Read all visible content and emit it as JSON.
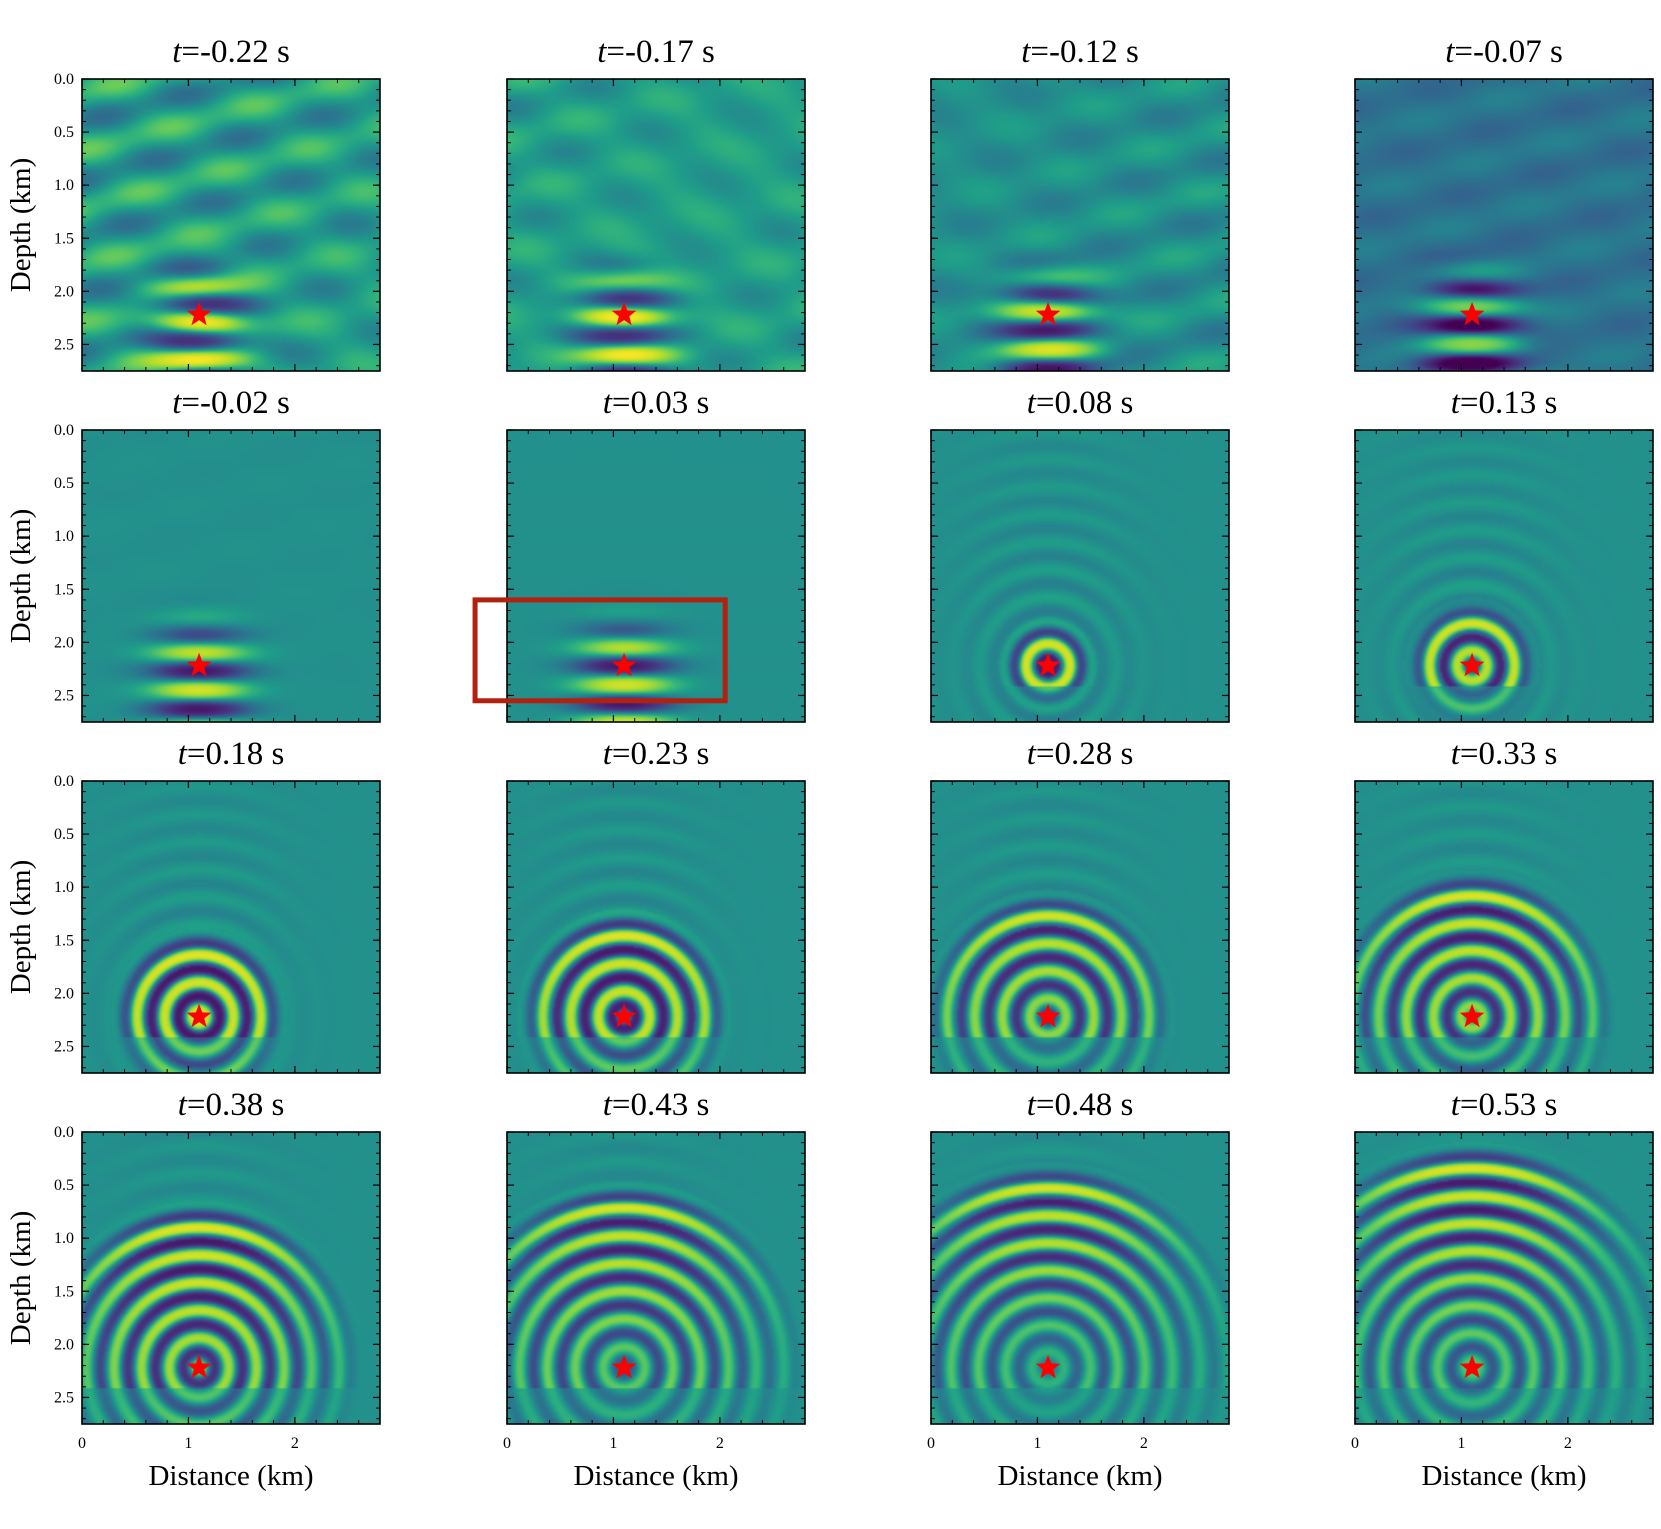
{
  "figure": {
    "colormap": [
      "#440154",
      "#482878",
      "#3e4a89",
      "#31688e",
      "#26828e",
      "#1f9e89",
      "#35b779",
      "#6ece58",
      "#b5de2b",
      "#fde725"
    ],
    "frame_color": "#000000",
    "source_marker": {
      "shape": "star",
      "color": "#ff0000",
      "x_km": 1.1,
      "depth_km": 2.22
    },
    "highlight_box": {
      "panel_index": 5,
      "color": "#b22010",
      "x_range_km": [
        -0.3,
        2.05
      ],
      "depth_range_km": [
        1.6,
        2.55
      ]
    }
  },
  "chart_data": {
    "type": "heatmap",
    "rows": 4,
    "columns": 4,
    "xlabel": "Distance (km)",
    "ylabel": "Depth (km)",
    "xlim": [
      0,
      2.8
    ],
    "ylim": [
      2.75,
      0.0
    ],
    "x_ticks": [
      0,
      1,
      2
    ],
    "y_ticks": [
      0.0,
      0.5,
      1.0,
      1.5,
      2.0,
      2.5
    ],
    "y_inverted": true,
    "title_prefix": "t",
    "title_unit": "s",
    "panels": [
      {
        "t": "-0.22",
        "title": "t=-0.22 s"
      },
      {
        "t": "-0.17",
        "title": "t=-0.17 s"
      },
      {
        "t": "-0.12",
        "title": "t=-0.12 s"
      },
      {
        "t": "-0.07",
        "title": "t=-0.07 s"
      },
      {
        "t": "-0.02",
        "title": "t=-0.02 s"
      },
      {
        "t": "0.03",
        "title": "t=0.03 s"
      },
      {
        "t": "0.08",
        "title": "t=0.08 s"
      },
      {
        "t": "0.13",
        "title": "t=0.13 s"
      },
      {
        "t": "0.18",
        "title": "t=0.18 s"
      },
      {
        "t": "0.23",
        "title": "t=0.23 s"
      },
      {
        "t": "0.28",
        "title": "t=0.28 s"
      },
      {
        "t": "0.33",
        "title": "t=0.33 s"
      },
      {
        "t": "0.38",
        "title": "t=0.38 s"
      },
      {
        "t": "0.43",
        "title": "t=0.43 s"
      },
      {
        "t": "0.48",
        "title": "t=0.48 s"
      },
      {
        "t": "0.53",
        "title": "t=0.53 s"
      }
    ]
  }
}
